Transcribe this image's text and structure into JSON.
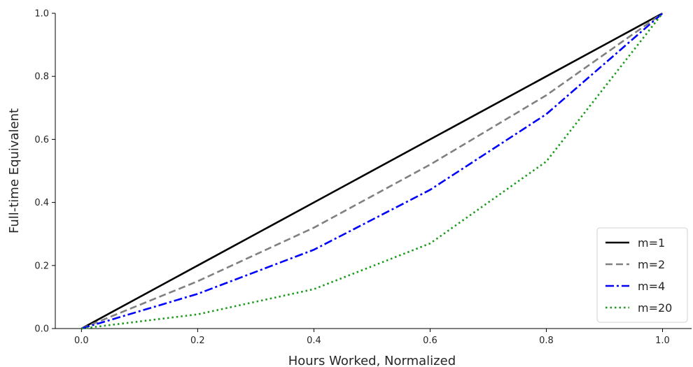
{
  "chart_data": {
    "type": "line",
    "title": "",
    "xlabel": "Hours Worked, Normalized",
    "ylabel": "Full-time Equivalent",
    "xlim": [
      0.0,
      1.0
    ],
    "ylim": [
      0.0,
      1.0
    ],
    "grid": false,
    "legend_position": "bottom-right",
    "xticks": [
      "0.0",
      "0.2",
      "0.4",
      "0.6",
      "0.8",
      "1.0"
    ],
    "yticks": [
      "0.0",
      "0.2",
      "0.4",
      "0.6",
      "0.8",
      "1.0"
    ],
    "x": [
      0.0,
      0.2,
      0.4,
      0.6,
      0.8,
      1.0
    ],
    "series": [
      {
        "name": "m=1",
        "color": "#000000",
        "style": "solid",
        "values": [
          0.0,
          0.2,
          0.4,
          0.6,
          0.8,
          1.0
        ]
      },
      {
        "name": "m=2",
        "color": "#808080",
        "style": "dashed",
        "values": [
          0.0,
          0.15,
          0.32,
          0.52,
          0.74,
          1.0
        ]
      },
      {
        "name": "m=4",
        "color": "#0000ff",
        "style": "dashdot",
        "values": [
          0.0,
          0.11,
          0.25,
          0.44,
          0.68,
          1.0
        ]
      },
      {
        "name": "m=20",
        "color": "#1a9a1a",
        "style": "dotted",
        "values": [
          0.0,
          0.045,
          0.125,
          0.27,
          0.53,
          1.0
        ]
      }
    ]
  }
}
